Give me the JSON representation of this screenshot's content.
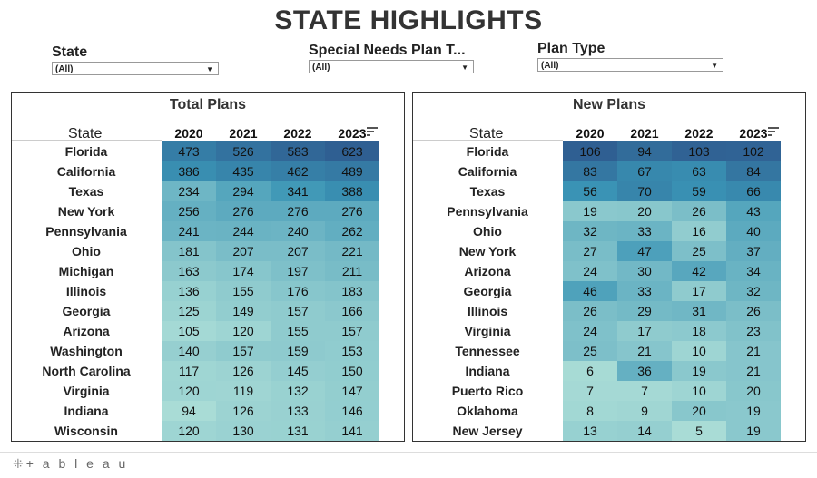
{
  "title": "STATE HIGHLIGHTS",
  "filters": [
    {
      "label": "State",
      "value": "(All)"
    },
    {
      "label": "Special Needs Plan T...",
      "value": "(All)"
    },
    {
      "label": "Plan Type",
      "value": "(All)"
    }
  ],
  "colors": {
    "dark": "#2f5f92",
    "mid": "#3a94b5",
    "light": "#a9dcd6"
  },
  "years": [
    "2020",
    "2021",
    "2022",
    "2023"
  ],
  "total_plans": {
    "title": "Total Plans",
    "state_header": "State",
    "rows": [
      {
        "state": "Florida",
        "values": [
          473,
          526,
          583,
          623
        ]
      },
      {
        "state": "California",
        "values": [
          386,
          435,
          462,
          489
        ]
      },
      {
        "state": "Texas",
        "values": [
          234,
          294,
          341,
          388
        ]
      },
      {
        "state": "New York",
        "values": [
          256,
          276,
          276,
          276
        ]
      },
      {
        "state": "Pennsylvania",
        "values": [
          241,
          244,
          240,
          262
        ]
      },
      {
        "state": "Ohio",
        "values": [
          181,
          207,
          207,
          221
        ]
      },
      {
        "state": "Michigan",
        "values": [
          163,
          174,
          197,
          211
        ]
      },
      {
        "state": "Illinois",
        "values": [
          136,
          155,
          176,
          183
        ]
      },
      {
        "state": "Georgia",
        "values": [
          125,
          149,
          157,
          166
        ]
      },
      {
        "state": "Arizona",
        "values": [
          105,
          120,
          155,
          157
        ]
      },
      {
        "state": "Washington",
        "values": [
          140,
          157,
          159,
          153
        ]
      },
      {
        "state": "North Carolina",
        "values": [
          117,
          126,
          145,
          150
        ]
      },
      {
        "state": "Virginia",
        "values": [
          120,
          119,
          132,
          147
        ]
      },
      {
        "state": "Indiana",
        "values": [
          94,
          126,
          133,
          146
        ]
      },
      {
        "state": "Wisconsin",
        "values": [
          120,
          130,
          131,
          141
        ]
      }
    ]
  },
  "new_plans": {
    "title": "New Plans",
    "state_header": "State",
    "rows": [
      {
        "state": "Florida",
        "values": [
          106,
          94,
          103,
          102
        ]
      },
      {
        "state": "California",
        "values": [
          83,
          67,
          63,
          84
        ]
      },
      {
        "state": "Texas",
        "values": [
          56,
          70,
          59,
          66
        ]
      },
      {
        "state": "Pennsylvania",
        "values": [
          19,
          20,
          26,
          43
        ]
      },
      {
        "state": "Ohio",
        "values": [
          32,
          33,
          16,
          40
        ]
      },
      {
        "state": "New York",
        "values": [
          27,
          47,
          25,
          37
        ]
      },
      {
        "state": "Arizona",
        "values": [
          24,
          30,
          42,
          34
        ]
      },
      {
        "state": "Georgia",
        "values": [
          46,
          33,
          17,
          32
        ]
      },
      {
        "state": "Illinois",
        "values": [
          26,
          29,
          31,
          26
        ]
      },
      {
        "state": "Virginia",
        "values": [
          24,
          17,
          18,
          23
        ]
      },
      {
        "state": "Tennessee",
        "values": [
          25,
          21,
          10,
          21
        ]
      },
      {
        "state": "Indiana",
        "values": [
          6,
          36,
          19,
          21
        ]
      },
      {
        "state": "Puerto Rico",
        "values": [
          7,
          7,
          10,
          20
        ]
      },
      {
        "state": "Oklahoma",
        "values": [
          8,
          9,
          20,
          19
        ]
      },
      {
        "state": "New Jersey",
        "values": [
          13,
          14,
          5,
          19
        ]
      }
    ]
  },
  "footer": {
    "logo_text": "+ a b l e a u"
  }
}
